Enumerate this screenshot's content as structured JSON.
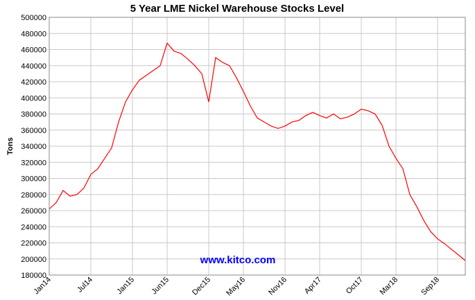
{
  "chart_data": {
    "type": "line",
    "title": "5 Year LME Nickel Warehouse Stocks Level",
    "xlabel": "",
    "ylabel": "Tons",
    "watermark": "www.kitco.com",
    "ylim": [
      180000,
      500000
    ],
    "y_ticks": [
      180000,
      200000,
      220000,
      240000,
      260000,
      280000,
      300000,
      320000,
      340000,
      360000,
      380000,
      400000,
      420000,
      440000,
      460000,
      480000,
      500000
    ],
    "x_tick_labels": [
      "Jan14",
      "Jul14",
      "Jan15",
      "Jun15",
      "Dec15",
      "May16",
      "Nov16",
      "Apr17",
      "Oct17",
      "Mar18",
      "Sep18"
    ],
    "x_tick_positions": [
      "2014-01",
      "2014-07",
      "2015-01",
      "2015-06",
      "2015-12",
      "2016-05",
      "2016-11",
      "2017-04",
      "2017-10",
      "2018-03",
      "2018-09"
    ],
    "xlim": [
      "2014-01",
      "2019-01"
    ],
    "grid": true,
    "colors": {
      "line": "#ff0000",
      "grid": "#c8c8c8",
      "watermark": "#0000ff",
      "frame": "#888888"
    },
    "series": [
      {
        "x": [
          "2014-01",
          "2014-02",
          "2014-03",
          "2014-04",
          "2014-05",
          "2014-06",
          "2014-07",
          "2014-08",
          "2014-09",
          "2014-10",
          "2014-11",
          "2014-12",
          "2015-01",
          "2015-02",
          "2015-03",
          "2015-04",
          "2015-05",
          "2015-06",
          "2015-07",
          "2015-08",
          "2015-09",
          "2015-10",
          "2015-11",
          "2015-12",
          "2016-01",
          "2016-02",
          "2016-03",
          "2016-04",
          "2016-05",
          "2016-06",
          "2016-07",
          "2016-08",
          "2016-09",
          "2016-10",
          "2016-11",
          "2016-12",
          "2017-01",
          "2017-02",
          "2017-03",
          "2017-04",
          "2017-05",
          "2017-06",
          "2017-07",
          "2017-08",
          "2017-09",
          "2017-10",
          "2017-11",
          "2017-12",
          "2018-01",
          "2018-02",
          "2018-03",
          "2018-04",
          "2018-05",
          "2018-06",
          "2018-07",
          "2018-08",
          "2018-09",
          "2018-10",
          "2018-11",
          "2018-12",
          "2019-01"
        ],
        "values": [
          262000,
          270000,
          285000,
          278000,
          280000,
          288000,
          305000,
          312000,
          325000,
          338000,
          370000,
          395000,
          410000,
          422000,
          428000,
          434000,
          440000,
          468000,
          458000,
          455000,
          448000,
          440000,
          430000,
          395000,
          450000,
          444000,
          440000,
          425000,
          408000,
          390000,
          375000,
          370000,
          365000,
          362000,
          365000,
          370000,
          372000,
          378000,
          382000,
          378000,
          375000,
          380000,
          374000,
          376000,
          380000,
          386000,
          384000,
          380000,
          366000,
          340000,
          325000,
          312000,
          280000,
          265000,
          248000,
          234000,
          225000,
          219000,
          212000,
          205000,
          198000
        ]
      }
    ]
  }
}
